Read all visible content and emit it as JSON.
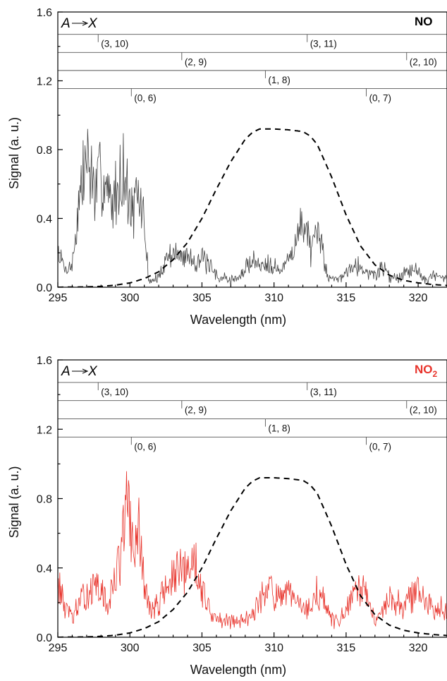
{
  "chart_data": [
    {
      "type": "line",
      "panel": "top",
      "species_label": "NO",
      "species_color": "#000000",
      "trace_color": "#444444",
      "transition_label_upper": "A",
      "transition_label_lower": "X",
      "xlabel": "Wavelength (nm)",
      "ylabel": "Signal (a. u.)",
      "xlim": [
        295,
        322
      ],
      "ylim": [
        0,
        1.6
      ],
      "x_ticks": [
        "295",
        "300",
        "305",
        "310",
        "315",
        "320"
      ],
      "y_ticks": [
        "0.0",
        "0.4",
        "0.8",
        "1.2",
        "1.6"
      ],
      "band_rows": [
        {
          "y": 1.47,
          "bands": [
            {
              "x": 297.8,
              "label": "(3, 10)"
            },
            {
              "x": 312.3,
              "label": "(3, 11)"
            }
          ]
        },
        {
          "y": 1.365,
          "bands": [
            {
              "x": 303.6,
              "label": "(2, 9)"
            },
            {
              "x": 319.2,
              "label": "(2, 10)"
            }
          ]
        },
        {
          "y": 1.26,
          "bands": [
            {
              "x": 309.4,
              "label": "(1, 8)"
            }
          ]
        },
        {
          "y": 1.155,
          "bands": [
            {
              "x": 300.1,
              "label": "(0, 6)"
            },
            {
              "x": 316.4,
              "label": "(0, 7)"
            }
          ]
        }
      ],
      "signal_envelope": [
        [
          295,
          0.25
        ],
        [
          295.5,
          0.12
        ],
        [
          296,
          0.15
        ],
        [
          296.5,
          0.6
        ],
        [
          297,
          0.9
        ],
        [
          297.3,
          0.78
        ],
        [
          297.6,
          0.62
        ],
        [
          298,
          0.78
        ],
        [
          298.3,
          0.72
        ],
        [
          298.7,
          0.55
        ],
        [
          299.2,
          0.7
        ],
        [
          299.5,
          0.84
        ],
        [
          299.8,
          0.66
        ],
        [
          300.2,
          0.5
        ],
        [
          300.6,
          0.62
        ],
        [
          301,
          0.45
        ],
        [
          301.3,
          0.05
        ],
        [
          302,
          0.06
        ],
        [
          302.5,
          0.2
        ],
        [
          303,
          0.24
        ],
        [
          303.5,
          0.2
        ],
        [
          304,
          0.22
        ],
        [
          304.5,
          0.18
        ],
        [
          305,
          0.2
        ],
        [
          305.5,
          0.14
        ],
        [
          306,
          0.08
        ],
        [
          306.5,
          0.06
        ],
        [
          307,
          0.05
        ],
        [
          307.5,
          0.06
        ],
        [
          308,
          0.12
        ],
        [
          308.5,
          0.2
        ],
        [
          309,
          0.14
        ],
        [
          309.5,
          0.18
        ],
        [
          310,
          0.15
        ],
        [
          310.5,
          0.1
        ],
        [
          311,
          0.2
        ],
        [
          311.5,
          0.3
        ],
        [
          312,
          0.45
        ],
        [
          312.3,
          0.42
        ],
        [
          312.6,
          0.22
        ],
        [
          313,
          0.36
        ],
        [
          313.3,
          0.3
        ],
        [
          313.7,
          0.08
        ],
        [
          314.3,
          0.05
        ],
        [
          315,
          0.1
        ],
        [
          315.5,
          0.18
        ],
        [
          316,
          0.13
        ],
        [
          316.5,
          0.1
        ],
        [
          317,
          0.08
        ],
        [
          317.5,
          0.14
        ],
        [
          318,
          0.08
        ],
        [
          318.5,
          0.06
        ],
        [
          319,
          0.1
        ],
        [
          319.7,
          0.14
        ],
        [
          320.3,
          0.06
        ],
        [
          321,
          0.08
        ],
        [
          322,
          0.05
        ]
      ],
      "laser_profile": [
        [
          295,
          0.0
        ],
        [
          297,
          0.002
        ],
        [
          298,
          0.005
        ],
        [
          299,
          0.012
        ],
        [
          300,
          0.025
        ],
        [
          301,
          0.05
        ],
        [
          302,
          0.09
        ],
        [
          303,
          0.16
        ],
        [
          304,
          0.26
        ],
        [
          305,
          0.4
        ],
        [
          306,
          0.57
        ],
        [
          307,
          0.73
        ],
        [
          308,
          0.86
        ],
        [
          308.5,
          0.9
        ],
        [
          309,
          0.92
        ],
        [
          310,
          0.92
        ],
        [
          311,
          0.915
        ],
        [
          312,
          0.905
        ],
        [
          312.5,
          0.88
        ],
        [
          313,
          0.83
        ],
        [
          314,
          0.64
        ],
        [
          315,
          0.42
        ],
        [
          316,
          0.24
        ],
        [
          317,
          0.13
        ],
        [
          318,
          0.07
        ],
        [
          319,
          0.04
        ],
        [
          320,
          0.025
        ],
        [
          321,
          0.016
        ],
        [
          322,
          0.01
        ]
      ]
    },
    {
      "type": "line",
      "panel": "bottom",
      "species_label": "NO",
      "species_subscript": "2",
      "species_color": "#e8332b",
      "trace_color": "#e8332b",
      "transition_label_upper": "A",
      "transition_label_lower": "X",
      "xlabel": "Wavelength (nm)",
      "ylabel": "Signal (a. u.)",
      "xlim": [
        295,
        322
      ],
      "ylim": [
        0,
        1.6
      ],
      "x_ticks": [
        "295",
        "300",
        "305",
        "310",
        "315",
        "320"
      ],
      "y_ticks": [
        "0.0",
        "0.4",
        "0.8",
        "1.2",
        "1.6"
      ],
      "band_rows": [
        {
          "y": 1.47,
          "bands": [
            {
              "x": 297.8,
              "label": "(3, 10)"
            },
            {
              "x": 312.3,
              "label": "(3, 11)"
            }
          ]
        },
        {
          "y": 1.365,
          "bands": [
            {
              "x": 303.6,
              "label": "(2, 9)"
            },
            {
              "x": 319.2,
              "label": "(2, 10)"
            }
          ]
        },
        {
          "y": 1.26,
          "bands": [
            {
              "x": 309.4,
              "label": "(1, 8)"
            }
          ]
        },
        {
          "y": 1.155,
          "bands": [
            {
              "x": 300.1,
              "label": "(0, 6)"
            },
            {
              "x": 316.4,
              "label": "(0, 7)"
            }
          ]
        }
      ],
      "signal_envelope": [
        [
          295,
          0.38
        ],
        [
          295.5,
          0.2
        ],
        [
          296,
          0.14
        ],
        [
          296.5,
          0.22
        ],
        [
          297,
          0.3
        ],
        [
          297.5,
          0.34
        ],
        [
          298,
          0.3
        ],
        [
          298.5,
          0.22
        ],
        [
          299,
          0.4
        ],
        [
          299.4,
          0.6
        ],
        [
          299.8,
          0.9
        ],
        [
          300.2,
          0.6
        ],
        [
          300.6,
          0.72
        ],
        [
          301,
          0.36
        ],
        [
          301.5,
          0.16
        ],
        [
          302,
          0.24
        ],
        [
          302.5,
          0.34
        ],
        [
          303,
          0.4
        ],
        [
          303.5,
          0.44
        ],
        [
          304,
          0.42
        ],
        [
          304.5,
          0.56
        ],
        [
          305,
          0.32
        ],
        [
          305.5,
          0.2
        ],
        [
          306,
          0.12
        ],
        [
          306.5,
          0.1
        ],
        [
          307,
          0.12
        ],
        [
          307.5,
          0.1
        ],
        [
          308,
          0.13
        ],
        [
          308.5,
          0.18
        ],
        [
          309,
          0.22
        ],
        [
          309.5,
          0.38
        ],
        [
          310,
          0.28
        ],
        [
          310.5,
          0.24
        ],
        [
          311,
          0.3
        ],
        [
          311.5,
          0.24
        ],
        [
          312,
          0.18
        ],
        [
          312.5,
          0.2
        ],
        [
          313,
          0.3
        ],
        [
          313.5,
          0.24
        ],
        [
          314,
          0.12
        ],
        [
          314.5,
          0.1
        ],
        [
          315,
          0.18
        ],
        [
          315.5,
          0.28
        ],
        [
          316,
          0.32
        ],
        [
          316.5,
          0.26
        ],
        [
          317,
          0.12
        ],
        [
          317.5,
          0.2
        ],
        [
          318,
          0.26
        ],
        [
          318.5,
          0.24
        ],
        [
          319,
          0.2
        ],
        [
          319.5,
          0.28
        ],
        [
          320,
          0.32
        ],
        [
          320.5,
          0.24
        ],
        [
          321,
          0.18
        ],
        [
          321.5,
          0.22
        ],
        [
          322,
          0.2
        ]
      ],
      "laser_profile": [
        [
          295,
          0.0
        ],
        [
          297,
          0.002
        ],
        [
          298,
          0.005
        ],
        [
          299,
          0.012
        ],
        [
          300,
          0.025
        ],
        [
          301,
          0.05
        ],
        [
          302,
          0.09
        ],
        [
          303,
          0.16
        ],
        [
          304,
          0.26
        ],
        [
          305,
          0.4
        ],
        [
          306,
          0.57
        ],
        [
          307,
          0.73
        ],
        [
          308,
          0.86
        ],
        [
          308.5,
          0.9
        ],
        [
          309,
          0.92
        ],
        [
          310,
          0.92
        ],
        [
          311,
          0.915
        ],
        [
          312,
          0.905
        ],
        [
          312.5,
          0.88
        ],
        [
          313,
          0.83
        ],
        [
          314,
          0.64
        ],
        [
          315,
          0.42
        ],
        [
          316,
          0.24
        ],
        [
          317,
          0.13
        ],
        [
          318,
          0.07
        ],
        [
          319,
          0.04
        ],
        [
          320,
          0.025
        ],
        [
          321,
          0.016
        ],
        [
          322,
          0.01
        ]
      ]
    }
  ]
}
